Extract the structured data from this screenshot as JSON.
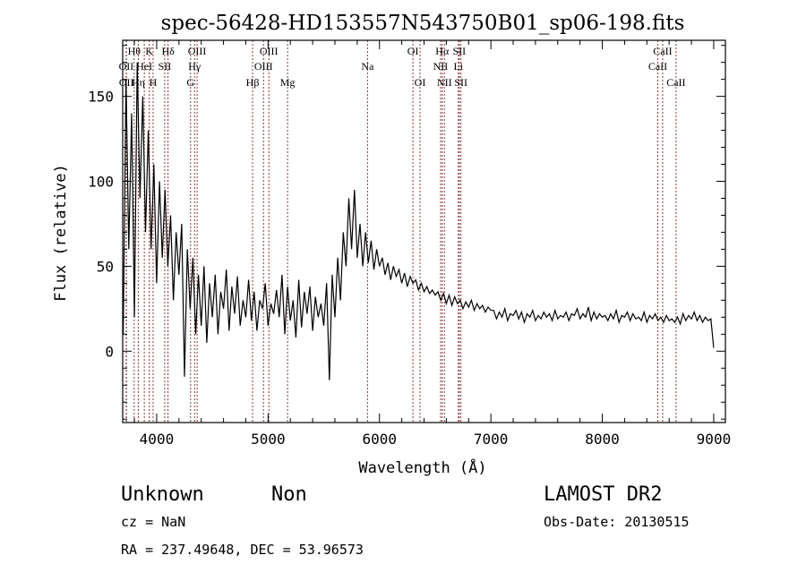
{
  "chart_data": {
    "type": "line",
    "title": "spec-56428-HD153557N543750B01_sp06-198.fits",
    "xlabel": "Wavelength (Å)",
    "ylabel": "Flux (relative)",
    "xlim": [
      3695,
      9105
    ],
    "ylim": [
      -42,
      183
    ],
    "x_ticks": [
      4000,
      5000,
      6000,
      7000,
      8000,
      9000
    ],
    "y_ticks": [
      0,
      50,
      100,
      150
    ],
    "grid": false,
    "series": [
      {
        "name": "spectrum",
        "x_start": 3700,
        "x_step": 25,
        "values": [
          10,
          160,
          60,
          140,
          20,
          170,
          90,
          150,
          70,
          130,
          60,
          110,
          40,
          100,
          55,
          95,
          50,
          80,
          30,
          70,
          45,
          75,
          -15,
          60,
          25,
          55,
          10,
          45,
          15,
          50,
          5,
          40,
          20,
          45,
          10,
          35,
          25,
          48,
          12,
          38,
          22,
          44,
          15,
          30,
          20,
          42,
          18,
          35,
          12,
          30,
          25,
          40,
          15,
          28,
          22,
          36,
          20,
          45,
          10,
          38,
          18,
          30,
          8,
          42,
          14,
          35,
          22,
          38,
          12,
          32,
          20,
          28,
          15,
          40,
          -17,
          45,
          20,
          55,
          30,
          70,
          50,
          90,
          60,
          95,
          55,
          75,
          50,
          70,
          52,
          65,
          48,
          60,
          50,
          55,
          45,
          52,
          42,
          50,
          44,
          48,
          40,
          46,
          38,
          44,
          40,
          42,
          36,
          40,
          35,
          38,
          34,
          36,
          33,
          35,
          30,
          34,
          28,
          33,
          27,
          32,
          28,
          30,
          25,
          29,
          26,
          30,
          24,
          28,
          25,
          27,
          23,
          26,
          24,
          24,
          19,
          23,
          20,
          25,
          18,
          22,
          21,
          24,
          19,
          23,
          17,
          22,
          20,
          24,
          18,
          21,
          19,
          23,
          20,
          22,
          18,
          24,
          19,
          21,
          20,
          23,
          18,
          22,
          21,
          25,
          19,
          22,
          20,
          26,
          18,
          23,
          19,
          22,
          20,
          21,
          18,
          22,
          19,
          24,
          17,
          21,
          20,
          23,
          18,
          22,
          19,
          20,
          18,
          23,
          17,
          21,
          19,
          22,
          18,
          20,
          17,
          21,
          18,
          19,
          17,
          20,
          16,
          22,
          18,
          21,
          19,
          23,
          18,
          21,
          17,
          20,
          18,
          19,
          2
        ]
      }
    ],
    "lines": [
      {
        "label": "Hθ",
        "wave": 3798,
        "row": 1
      },
      {
        "label": "K",
        "wave": 3934,
        "row": 1
      },
      {
        "label": "Hδ",
        "wave": 4102,
        "row": 1
      },
      {
        "label": "OIII",
        "wave": 4363,
        "row": 1
      },
      {
        "label": "OIII",
        "wave": 5007,
        "row": 1
      },
      {
        "label": "OII",
        "wave": 3727,
        "row": 2
      },
      {
        "label": "HeI",
        "wave": 3889,
        "row": 2
      },
      {
        "label": "SII",
        "wave": 4072,
        "row": 2
      },
      {
        "label": "Hγ",
        "wave": 4340,
        "row": 2
      },
      {
        "label": "OIII",
        "wave": 4959,
        "row": 2
      },
      {
        "label": "OII",
        "wave": 3729,
        "row": 3
      },
      {
        "label": "Hη",
        "wave": 3835,
        "row": 3
      },
      {
        "label": "H",
        "wave": 3968,
        "row": 3
      },
      {
        "label": "G",
        "wave": 4304,
        "row": 3
      },
      {
        "label": "Hβ",
        "wave": 4861,
        "row": 3
      },
      {
        "label": "Mg",
        "wave": 5175,
        "row": 3
      },
      {
        "label": "Na",
        "wave": 5893,
        "row": 2
      },
      {
        "label": "OI",
        "wave": 6300,
        "row": 1
      },
      {
        "label": "OI",
        "wave": 6364,
        "row": 3
      },
      {
        "label": "Hα",
        "wave": 6563,
        "row": 1
      },
      {
        "label": "SII",
        "wave": 6716,
        "row": 1
      },
      {
        "label": "NII",
        "wave": 6548,
        "row": 2
      },
      {
        "label": "Li",
        "wave": 6708,
        "row": 2
      },
      {
        "label": "NII",
        "wave": 6583,
        "row": 3
      },
      {
        "label": "SII",
        "wave": 6731,
        "row": 3
      },
      {
        "label": "CaII",
        "wave": 8542,
        "row": 1
      },
      {
        "label": "CaII",
        "wave": 8498,
        "row": 2
      },
      {
        "label": "CaII",
        "wave": 8662,
        "row": 3
      }
    ]
  },
  "colors": {
    "line_marker": "#8b3a3a",
    "spectrum": "#000000"
  },
  "info": {
    "class": "Unknown",
    "subclass": "Non",
    "survey": "LAMOST DR2",
    "cz": "cz = NaN",
    "obs_date": "Obs-Date: 20130515",
    "coords": "RA = 237.49648, DEC =  53.96573"
  }
}
